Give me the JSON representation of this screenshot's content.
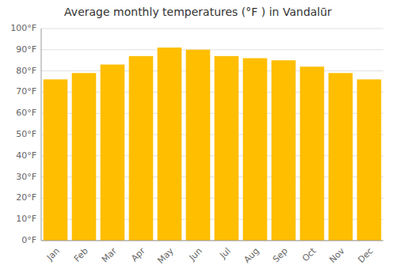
{
  "chart_data": {
    "type": "bar",
    "title": "Average monthly temperatures (°F ) in Vandalūr",
    "categories": [
      "Jan",
      "Feb",
      "Mar",
      "Apr",
      "May",
      "Jun",
      "Jul",
      "Aug",
      "Sep",
      "Oct",
      "Nov",
      "Dec"
    ],
    "values": [
      76,
      79,
      83,
      87,
      91,
      90,
      87,
      86,
      85,
      82,
      79,
      76
    ],
    "color": "#FFBE00",
    "ylim": [
      0,
      100
    ],
    "yticks": [
      {
        "value": 0,
        "label": "0°F"
      },
      {
        "value": 10,
        "label": "10°F"
      },
      {
        "value": 20,
        "label": "20°F"
      },
      {
        "value": 30,
        "label": "30°F"
      },
      {
        "value": 40,
        "label": "40°F"
      },
      {
        "value": 50,
        "label": "50°F"
      },
      {
        "value": 60,
        "label": "60°F"
      },
      {
        "value": 70,
        "label": "70°F"
      },
      {
        "value": 80,
        "label": "80°F"
      },
      {
        "value": 90,
        "label": "90°F"
      },
      {
        "value": 100,
        "label": "100°F"
      }
    ],
    "grid": true
  }
}
